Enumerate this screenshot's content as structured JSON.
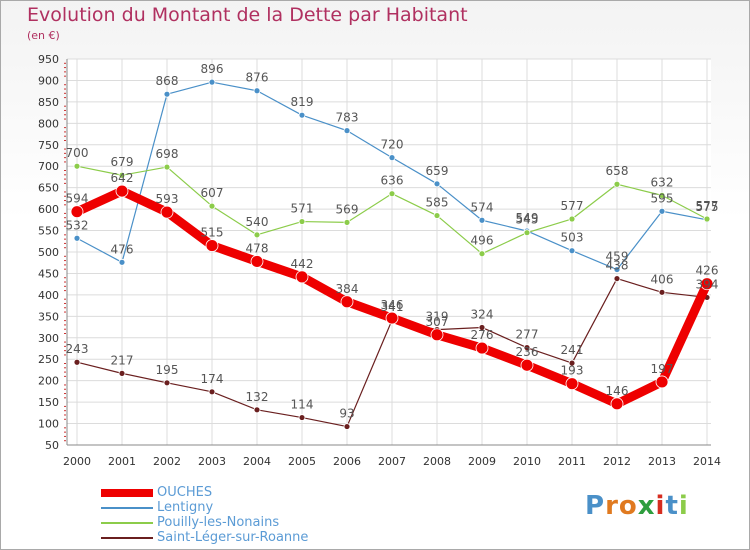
{
  "title": "Evolution du Montant de la Dette par Habitant",
  "unit": "(en €)",
  "logo": "Proxiti",
  "chart_data": {
    "type": "line",
    "title": "Evolution du Montant de la Dette par Habitant",
    "ylabel": "(en €)",
    "x": [
      "2000",
      "2001",
      "2002",
      "2003",
      "2004",
      "2005",
      "2006",
      "2007",
      "2008",
      "2009",
      "2010",
      "2011",
      "2012",
      "2013",
      "2014"
    ],
    "ylim": [
      50,
      950
    ],
    "yticks": [
      50,
      100,
      150,
      200,
      250,
      300,
      350,
      400,
      450,
      500,
      550,
      600,
      650,
      700,
      750,
      800,
      850,
      900,
      950
    ],
    "grid": true,
    "legend": "bottom-left",
    "series": [
      {
        "name": "OUCHES",
        "color": "#ee0000",
        "values": [
          594,
          642,
          593,
          515,
          478,
          442,
          384,
          346,
          307,
          276,
          236,
          193,
          146,
          197,
          426
        ],
        "labels": [
          "594",
          "642",
          "593",
          "515",
          "478",
          "442",
          "384",
          "346",
          "307",
          "276",
          "236",
          "193",
          "146",
          "197",
          "426"
        ]
      },
      {
        "name": "Lentigny",
        "color": "#4a90c8",
        "values": [
          532,
          476,
          868,
          896,
          876,
          819,
          783,
          720,
          659,
          574,
          549,
          503,
          459,
          595,
          575
        ],
        "labels": [
          "532",
          "476",
          "868",
          "896",
          "876",
          "819",
          "783",
          "720",
          "659",
          "574",
          "549",
          "503",
          "459",
          "595",
          "575"
        ]
      },
      {
        "name": "Pouilly-les-Nonains",
        "color": "#8ccc4a",
        "values": [
          700,
          679,
          698,
          607,
          540,
          571,
          569,
          636,
          585,
          496,
          545,
          577,
          658,
          632,
          577
        ],
        "labels": [
          "700",
          "679",
          "698",
          "607",
          "540",
          "571",
          "569",
          "636",
          "585",
          "496",
          "545",
          "577",
          "658",
          "632",
          "577"
        ]
      },
      {
        "name": "Saint-Léger-sur-Roanne",
        "color": "#6a1f1f",
        "values": [
          243,
          217,
          195,
          174,
          132,
          114,
          93,
          341,
          319,
          324,
          277,
          241,
          438,
          406,
          394
        ],
        "labels": [
          "243",
          "217",
          "195",
          "174",
          "132",
          "114",
          "93",
          "341",
          "319",
          "324",
          "277",
          "241",
          "438",
          "406",
          "394"
        ]
      }
    ]
  }
}
